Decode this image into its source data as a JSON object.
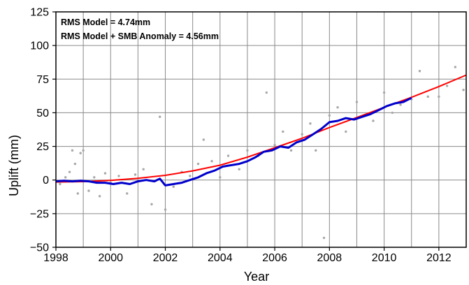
{
  "chart_data": {
    "type": "scatter",
    "xlabel": "Year",
    "ylabel": "Uplift (mm)",
    "xlim": [
      1998,
      2013
    ],
    "ylim": [
      -50,
      125
    ],
    "xticks": [
      1998,
      2000,
      2002,
      2004,
      2006,
      2008,
      2010,
      2012
    ],
    "yticks": [
      -50,
      -25,
      0,
      25,
      50,
      75,
      100,
      125
    ],
    "grid": true,
    "annotations": [
      "RMS Model = 4.74mm",
      "RMS Model + SMB Anomaly = 4.56mm"
    ],
    "series": [
      {
        "kind": "scatter",
        "color": "#a8a8a8",
        "points": [
          [
            1998.15,
            -3
          ],
          [
            1998.35,
            2
          ],
          [
            1998.5,
            6
          ],
          [
            1998.6,
            22
          ],
          [
            1998.7,
            12
          ],
          [
            1998.8,
            -10
          ],
          [
            1998.9,
            20
          ],
          [
            1999.0,
            22
          ],
          [
            1999.2,
            -8
          ],
          [
            1999.4,
            2
          ],
          [
            1999.6,
            -12
          ],
          [
            1999.8,
            5
          ],
          [
            2000.0,
            -2
          ],
          [
            2000.3,
            3
          ],
          [
            2000.6,
            -10
          ],
          [
            2000.9,
            4
          ],
          [
            2001.2,
            8
          ],
          [
            2001.5,
            -18
          ],
          [
            2001.8,
            47
          ],
          [
            2002.0,
            -22
          ],
          [
            2002.3,
            -5
          ],
          [
            2002.6,
            6
          ],
          [
            2002.9,
            3
          ],
          [
            2003.2,
            12
          ],
          [
            2003.4,
            30
          ],
          [
            2003.7,
            14
          ],
          [
            2004.0,
            2
          ],
          [
            2004.3,
            18
          ],
          [
            2004.7,
            8
          ],
          [
            2005.0,
            22
          ],
          [
            2005.4,
            18
          ],
          [
            2005.7,
            65
          ],
          [
            2006.0,
            26
          ],
          [
            2006.3,
            36
          ],
          [
            2006.6,
            22
          ],
          [
            2007.0,
            34
          ],
          [
            2007.3,
            42
          ],
          [
            2007.5,
            22
          ],
          [
            2007.8,
            -43
          ],
          [
            2008.0,
            48
          ],
          [
            2008.3,
            54
          ],
          [
            2008.6,
            36
          ],
          [
            2009.0,
            58
          ],
          [
            2009.3,
            48
          ],
          [
            2009.6,
            44
          ],
          [
            2010.0,
            65
          ],
          [
            2010.3,
            50
          ],
          [
            2010.6,
            56
          ],
          [
            2011.0,
            60
          ],
          [
            2011.3,
            81
          ],
          [
            2011.6,
            62
          ],
          [
            2012.0,
            62
          ],
          [
            2012.3,
            70
          ],
          [
            2012.6,
            84
          ],
          [
            2012.9,
            67
          ]
        ]
      },
      {
        "kind": "line",
        "color": "#ff0000",
        "x": [
          1998.0,
          1999,
          2000,
          2001,
          2002,
          2003,
          2004,
          2005,
          2006,
          2007,
          2008,
          2009,
          2010,
          2011,
          2012,
          2013
        ],
        "y": [
          -1.5,
          -1.2,
          -0.3,
          1.3,
          3.5,
          6.8,
          11,
          17,
          24,
          31,
          39,
          46.5,
          54,
          61.5,
          69.5,
          78
        ]
      },
      {
        "kind": "line",
        "color": "#0000cc",
        "x": [
          1998.0,
          1998.3,
          1998.6,
          1998.9,
          1999.2,
          1999.5,
          1999.8,
          2000.1,
          2000.4,
          2000.7,
          2001.0,
          2001.3,
          2001.6,
          2001.8,
          2002.0,
          2002.3,
          2002.6,
          2002.9,
          2003.2,
          2003.5,
          2003.8,
          2004.1,
          2004.4,
          2004.7,
          2005.0,
          2005.3,
          2005.6,
          2005.9,
          2006.2,
          2006.5,
          2006.8,
          2007.1,
          2007.4,
          2007.7,
          2008.0,
          2008.3,
          2008.6,
          2008.9,
          2009.2,
          2009.5,
          2009.8,
          2010.1,
          2010.4,
          2010.7,
          2011.0
        ],
        "y": [
          -1,
          -0.5,
          -1,
          -0.5,
          -1,
          -2,
          -2,
          -3,
          -2,
          -3,
          -1,
          0,
          -1,
          1,
          -4,
          -3,
          -2,
          0,
          2,
          5,
          7,
          10,
          11,
          12,
          14,
          17,
          21,
          22,
          25,
          24,
          28,
          30,
          34,
          38,
          43,
          44,
          46,
          45,
          47,
          49,
          52,
          55,
          57,
          58,
          61
        ]
      }
    ]
  }
}
